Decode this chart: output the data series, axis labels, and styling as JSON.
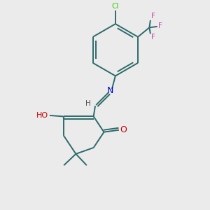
{
  "bg_color": "#ebebeb",
  "bond_color": "#2d6b6b",
  "cl_color": "#33cc00",
  "f_color": "#cc44aa",
  "n_color": "#0000cc",
  "o_color": "#cc0000",
  "h_color": "#555555",
  "figsize": [
    3.0,
    3.0
  ],
  "dpi": 100,
  "xlim": [
    0,
    10
  ],
  "ylim": [
    0,
    10
  ]
}
